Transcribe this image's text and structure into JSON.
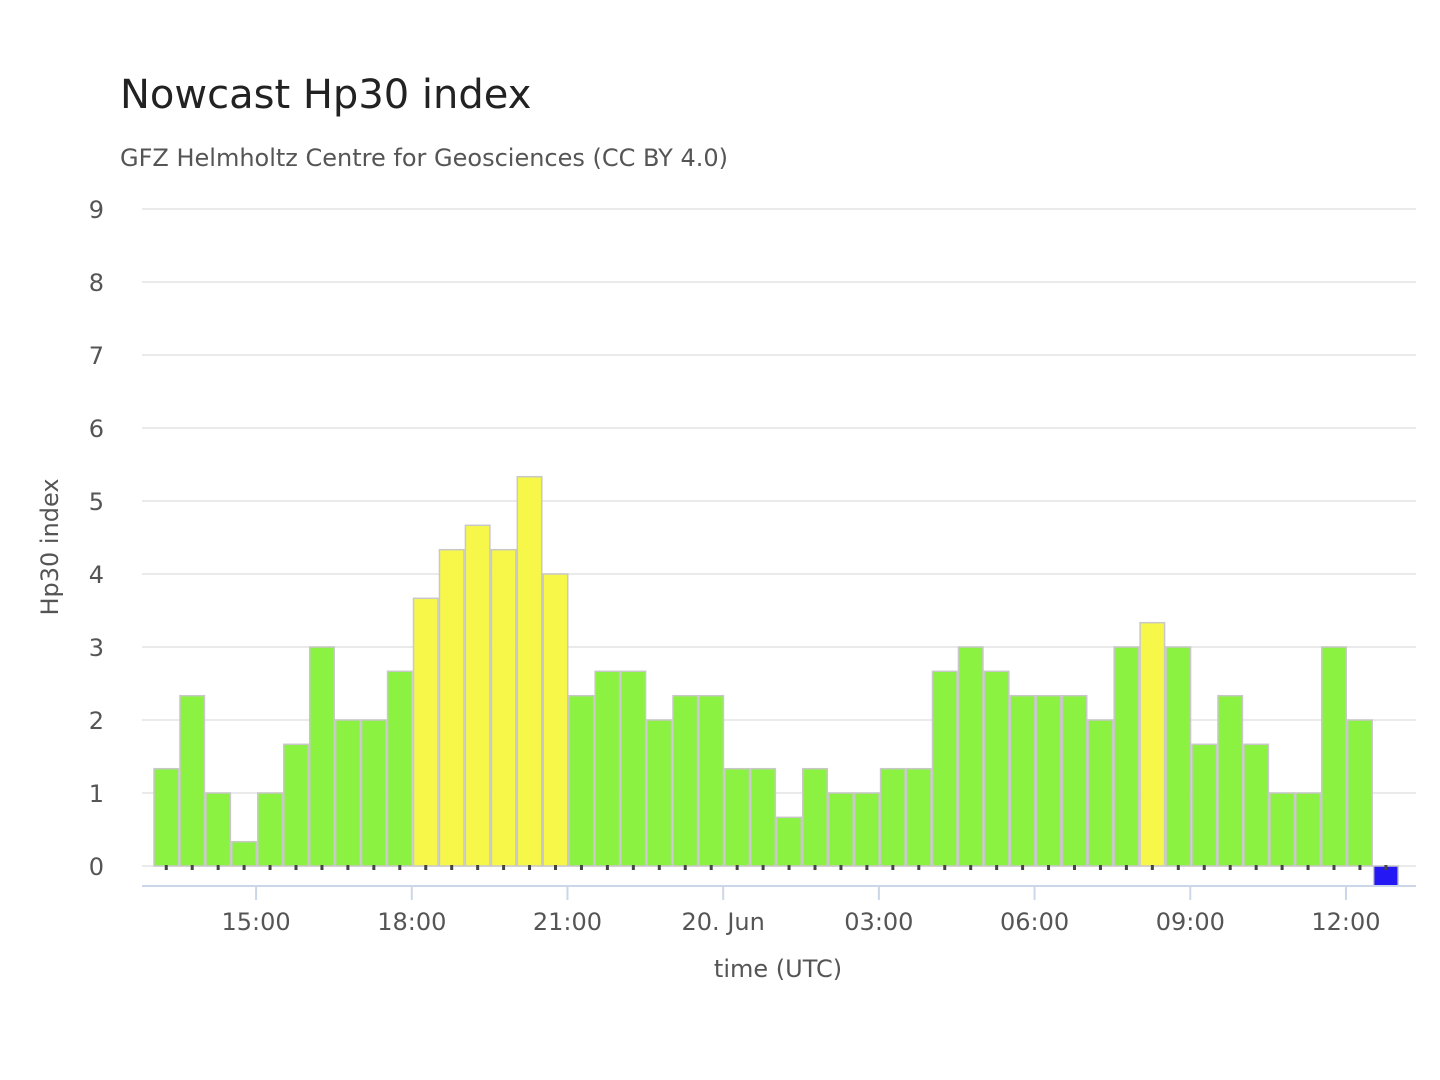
{
  "chart_data": {
    "type": "bar",
    "title": "Nowcast Hp30 index",
    "subtitle": "GFZ Helmholtz Centre for Geosciences (CC BY 4.0)",
    "xlabel": "time (UTC)",
    "ylabel": "Hp30 index",
    "ylim": [
      0,
      9
    ],
    "y_ticks": [
      "0",
      "1",
      "2",
      "3",
      "4",
      "5",
      "6",
      "7",
      "8",
      "9"
    ],
    "x_ticks": [
      {
        "label": "15:00",
        "index": 3
      },
      {
        "label": "18:00",
        "index": 9
      },
      {
        "label": "21:00",
        "index": 15
      },
      {
        "label": "20. Jun",
        "index": 21
      },
      {
        "label": "03:00",
        "index": 27
      },
      {
        "label": "06:00",
        "index": 33
      },
      {
        "label": "09:00",
        "index": 39
      },
      {
        "label": "12:00",
        "index": 45
      }
    ],
    "grid": true,
    "legend": "none",
    "colors": {
      "low": "#8bf241",
      "storm": "#f7f74a",
      "latest": "#2418f5"
    },
    "values": [
      1.333,
      2.333,
      1.0,
      0.333,
      1.0,
      1.667,
      3.0,
      2.0,
      2.0,
      2.667,
      3.667,
      4.333,
      4.667,
      4.333,
      5.333,
      4.0,
      2.333,
      2.667,
      2.667,
      2.0,
      2.333,
      2.333,
      1.333,
      1.333,
      0.667,
      1.333,
      1.0,
      1.0,
      1.333,
      1.333,
      2.667,
      3.0,
      2.667,
      2.333,
      2.333,
      2.333,
      2.0,
      3.0,
      3.333,
      3.0,
      1.667,
      2.333,
      1.667,
      1.0,
      1.0,
      3.0,
      2.0,
      0.0
    ]
  }
}
